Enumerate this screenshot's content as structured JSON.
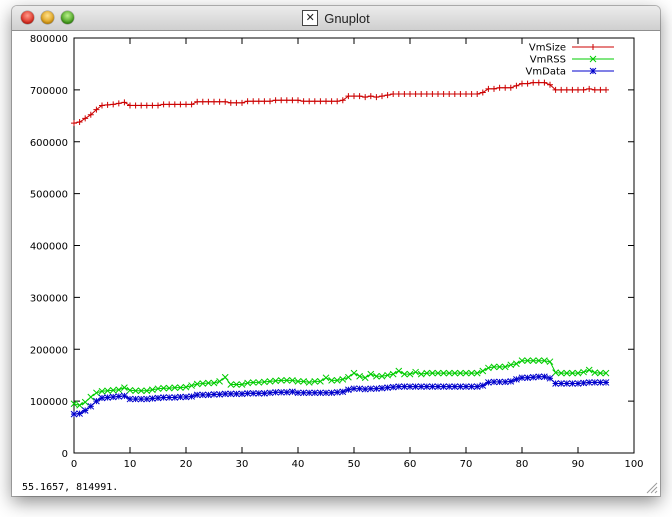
{
  "window": {
    "title": "Gnuplot",
    "status_readout": "55.1657,  814991."
  },
  "chart_data": {
    "type": "line",
    "xlim": [
      0,
      100
    ],
    "ylim": [
      0,
      800000
    ],
    "xticks": [
      0,
      10,
      20,
      30,
      40,
      50,
      60,
      70,
      80,
      90,
      100
    ],
    "yticks": [
      0,
      100000,
      200000,
      300000,
      400000,
      500000,
      600000,
      700000,
      800000
    ],
    "grid": false,
    "legend_position": "top-right",
    "series": [
      {
        "name": "VmSize",
        "color": "#cc0000",
        "marker": "plus",
        "x": [
          0,
          1,
          2,
          3,
          4,
          5,
          6,
          7,
          8,
          9,
          10,
          11,
          12,
          13,
          14,
          15,
          16,
          17,
          18,
          19,
          20,
          21,
          22,
          23,
          24,
          25,
          26,
          27,
          28,
          29,
          30,
          31,
          32,
          33,
          34,
          35,
          36,
          37,
          38,
          39,
          40,
          41,
          42,
          43,
          44,
          45,
          46,
          47,
          48,
          49,
          50,
          51,
          52,
          53,
          54,
          55,
          56,
          57,
          58,
          59,
          60,
          61,
          62,
          63,
          64,
          65,
          66,
          67,
          68,
          69,
          70,
          71,
          72,
          73,
          74,
          75,
          76,
          77,
          78,
          79,
          80,
          81,
          82,
          83,
          84,
          85,
          86,
          87,
          88,
          89,
          90,
          91,
          92,
          93,
          94,
          95
        ],
        "y": [
          636000,
          638000,
          645000,
          652000,
          662000,
          670000,
          671000,
          672000,
          674000,
          676000,
          670000,
          670000,
          670000,
          670000,
          670000,
          670000,
          672000,
          672000,
          672000,
          672000,
          672000,
          672000,
          677000,
          677000,
          677000,
          677000,
          677000,
          677000,
          675000,
          675000,
          675000,
          678000,
          678000,
          678000,
          678000,
          678000,
          680000,
          680000,
          680000,
          680000,
          680000,
          678000,
          678000,
          678000,
          678000,
          678000,
          678000,
          678000,
          680000,
          688000,
          688000,
          688000,
          686000,
          688000,
          686000,
          688000,
          690000,
          692000,
          692000,
          692000,
          692000,
          692000,
          692000,
          692000,
          692000,
          692000,
          692000,
          692000,
          692000,
          692000,
          692000,
          692000,
          692000,
          695000,
          702000,
          702000,
          704000,
          704000,
          704000,
          708000,
          712000,
          712000,
          714000,
          714000,
          714000,
          710000,
          700000,
          700000,
          700000,
          700000,
          700000,
          700000,
          702000,
          700000,
          700000,
          700000
        ]
      },
      {
        "name": "VmRSS",
        "color": "#00cc00",
        "marker": "cross",
        "x": [
          0,
          1,
          2,
          3,
          4,
          5,
          6,
          7,
          8,
          9,
          10,
          11,
          12,
          13,
          14,
          15,
          16,
          17,
          18,
          19,
          20,
          21,
          22,
          23,
          24,
          25,
          26,
          27,
          28,
          29,
          30,
          31,
          32,
          33,
          34,
          35,
          36,
          37,
          38,
          39,
          40,
          41,
          42,
          43,
          44,
          45,
          46,
          47,
          48,
          49,
          50,
          51,
          52,
          53,
          54,
          55,
          56,
          57,
          58,
          59,
          60,
          61,
          62,
          63,
          64,
          65,
          66,
          67,
          68,
          69,
          70,
          71,
          72,
          73,
          74,
          75,
          76,
          77,
          78,
          79,
          80,
          81,
          82,
          83,
          84,
          85,
          86,
          87,
          88,
          89,
          90,
          91,
          92,
          93,
          94,
          95
        ],
        "y": [
          95000,
          92000,
          98000,
          108000,
          116000,
          119000,
          120000,
          121000,
          122000,
          126000,
          121000,
          120000,
          120000,
          120000,
          122000,
          124000,
          125000,
          125000,
          126000,
          126000,
          127000,
          130000,
          133000,
          134000,
          135000,
          135000,
          138000,
          146000,
          132000,
          132000,
          132000,
          135000,
          136000,
          136000,
          137000,
          138000,
          139000,
          140000,
          140000,
          140000,
          138000,
          138000,
          136000,
          138000,
          138000,
          145000,
          140000,
          140000,
          142000,
          146000,
          154000,
          148000,
          145000,
          152000,
          148000,
          148000,
          150000,
          152000,
          158000,
          152000,
          152000,
          156000,
          152000,
          154000,
          154000,
          154000,
          154000,
          154000,
          154000,
          154000,
          154000,
          154000,
          154000,
          158000,
          164000,
          166000,
          166000,
          166000,
          170000,
          172000,
          178000,
          178000,
          178000,
          178000,
          178000,
          176000,
          155000,
          154000,
          154000,
          154000,
          154000,
          156000,
          160000,
          155000,
          154000,
          154000
        ]
      },
      {
        "name": "VmData",
        "color": "#0000cc",
        "marker": "star",
        "x": [
          0,
          1,
          2,
          3,
          4,
          5,
          6,
          7,
          8,
          9,
          10,
          11,
          12,
          13,
          14,
          15,
          16,
          17,
          18,
          19,
          20,
          21,
          22,
          23,
          24,
          25,
          26,
          27,
          28,
          29,
          30,
          31,
          32,
          33,
          34,
          35,
          36,
          37,
          38,
          39,
          40,
          41,
          42,
          43,
          44,
          45,
          46,
          47,
          48,
          49,
          50,
          51,
          52,
          53,
          54,
          55,
          56,
          57,
          58,
          59,
          60,
          61,
          62,
          63,
          64,
          65,
          66,
          67,
          68,
          69,
          70,
          71,
          72,
          73,
          74,
          75,
          76,
          77,
          78,
          79,
          80,
          81,
          82,
          83,
          84,
          85,
          86,
          87,
          88,
          89,
          90,
          91,
          92,
          93,
          94,
          95
        ],
        "y": [
          75000,
          76000,
          82000,
          90000,
          100000,
          106000,
          107000,
          108000,
          109000,
          110000,
          104000,
          104000,
          104000,
          104000,
          105000,
          106000,
          107000,
          107000,
          107000,
          108000,
          108000,
          109000,
          112000,
          112000,
          112000,
          113000,
          113000,
          114000,
          114000,
          114000,
          114000,
          115000,
          115000,
          115000,
          115000,
          116000,
          117000,
          117000,
          117000,
          118000,
          116000,
          116000,
          116000,
          116000,
          116000,
          116000,
          116000,
          117000,
          118000,
          122000,
          124000,
          124000,
          123000,
          124000,
          124000,
          125000,
          126000,
          127000,
          128000,
          128000,
          128000,
          128000,
          128000,
          128000,
          128000,
          128000,
          128000,
          128000,
          128000,
          128000,
          128000,
          128000,
          128000,
          130000,
          136000,
          137000,
          137000,
          137000,
          138000,
          142000,
          145000,
          145000,
          146000,
          147000,
          147000,
          144000,
          134000,
          134000,
          134000,
          134000,
          134000,
          135000,
          136000,
          136000,
          136000,
          136000
        ]
      }
    ]
  }
}
